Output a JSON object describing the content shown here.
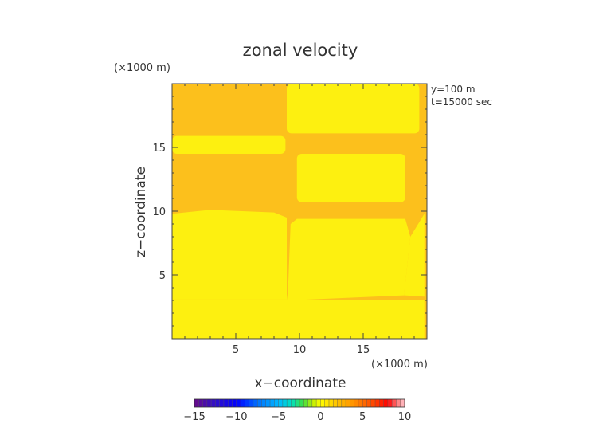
{
  "chart_data": {
    "type": "heatmap",
    "title": "zonal velocity",
    "xlabel": "x−coordinate",
    "ylabel": "z−coordinate",
    "x_unit": "(×1000 m)",
    "y_unit": "(×1000 m)",
    "annotations": [
      "y=100  m",
      "t=15000  sec"
    ],
    "xlim": [
      0,
      20
    ],
    "ylim": [
      0,
      20
    ],
    "x_ticks": [
      5,
      10,
      15
    ],
    "y_ticks": [
      5,
      10,
      15
    ],
    "grid": false,
    "background_level": 2,
    "regions": [
      {
        "kind": "rect",
        "x": [
          0,
          8.9
        ],
        "z": [
          14.5,
          15.9
        ],
        "level": 4
      },
      {
        "kind": "rect",
        "x": [
          9.0,
          19.4
        ],
        "z": [
          16.1,
          20
        ],
        "level": 4
      },
      {
        "kind": "rect",
        "x": [
          9.8,
          18.3
        ],
        "z": [
          10.7,
          14.5
        ],
        "level": 4
      },
      {
        "kind": "poly",
        "level": 4,
        "points": [
          [
            0,
            0
          ],
          [
            9,
            0
          ],
          [
            9,
            3.1
          ],
          [
            0,
            3.1
          ]
        ]
      },
      {
        "kind": "poly",
        "level": 4,
        "points": [
          [
            0,
            3.1
          ],
          [
            0,
            9.8
          ],
          [
            3,
            10.1
          ],
          [
            8,
            9.9
          ],
          [
            9,
            9.5
          ],
          [
            9,
            3.1
          ]
        ]
      },
      {
        "kind": "poly",
        "level": 4,
        "points": [
          [
            9,
            0
          ],
          [
            19.8,
            0
          ],
          [
            19.8,
            3
          ],
          [
            9,
            3
          ]
        ]
      },
      {
        "kind": "poly",
        "level": 4,
        "points": [
          [
            9,
            3
          ],
          [
            9.1,
            3.8
          ],
          [
            9.3,
            9.0
          ],
          [
            9.8,
            9.4
          ],
          [
            18.3,
            9.4
          ],
          [
            18.7,
            8.0
          ],
          [
            18.2,
            3.4
          ]
        ]
      },
      {
        "kind": "poly",
        "level": 4,
        "points": [
          [
            18.2,
            3.4
          ],
          [
            18.7,
            8.0
          ],
          [
            19.8,
            9.8
          ],
          [
            19.8,
            3.3
          ]
        ]
      }
    ],
    "colorbar": {
      "min": -15,
      "max": 10,
      "tick_labels": [
        "−15",
        "−10",
        "−5",
        "0",
        "5",
        "10"
      ],
      "tick_values": [
        -15,
        -10,
        -5,
        0,
        5,
        10
      ],
      "levels": 50,
      "color_stops": [
        [
          -15,
          "#6a0a8a"
        ],
        [
          -12.5,
          "#3010c8"
        ],
        [
          -10,
          "#0000ff"
        ],
        [
          -7.5,
          "#0070ff"
        ],
        [
          -5,
          "#00b8ff"
        ],
        [
          -3.5,
          "#00e0c0"
        ],
        [
          -2,
          "#40e040"
        ],
        [
          -0.8,
          "#c8f000"
        ],
        [
          0,
          "#ffff00"
        ],
        [
          2,
          "#ffc000"
        ],
        [
          4,
          "#ff9000"
        ],
        [
          6.5,
          "#ff4000"
        ],
        [
          8,
          "#ff0000"
        ],
        [
          9,
          "#ff7070"
        ],
        [
          10,
          "#ffc8d0"
        ]
      ],
      "level_colors": {
        "2": "#fcc01c",
        "4": "#fdf010"
      }
    }
  }
}
